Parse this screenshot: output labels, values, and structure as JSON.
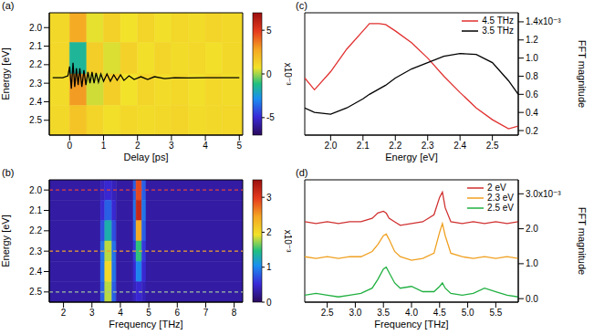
{
  "chart_data": [
    {
      "type": "heatmap",
      "title": "(a)",
      "x_label": "Delay [ps]",
      "y_label": "Energy [eV]",
      "xlim": [
        -0.6,
        5.1
      ],
      "xticks": [
        0,
        1,
        2,
        3,
        4,
        5
      ],
      "ylim": [
        1.92,
        2.58
      ],
      "yticks": [
        {
          "value": 2,
          "label": "2.0"
        },
        2.1,
        2.2,
        2.3,
        2.4,
        2.5
      ],
      "cells": {
        "x_edges": [
          -0.6,
          0,
          0.5,
          1,
          1.5,
          2,
          2.5,
          3,
          3.5,
          4,
          4.5,
          5.1
        ],
        "y_edges": [
          1.92,
          2.08,
          2.25,
          2.42,
          2.58
        ],
        "values": [
          [
            1.0,
            2.6,
            0.6,
            1.3,
            0.7,
            1.2,
            0.8,
            1.1,
            0.9,
            1.2,
            1.0
          ],
          [
            1.1,
            -1.5,
            1.4,
            0.5,
            1.3,
            0.8,
            1.2,
            0.9,
            1.1,
            0.8,
            1.0
          ],
          [
            0.9,
            3.0,
            0.4,
            1.4,
            0.7,
            1.2,
            0.9,
            1.1,
            0.8,
            1.1,
            0.9
          ],
          [
            1.0,
            1.8,
            1.2,
            0.8,
            1.1,
            0.9,
            1.0,
            1.2,
            0.9,
            1.0,
            1.1
          ]
        ]
      },
      "colorbar": {
        "range": [
          -7,
          7
        ],
        "ticks": [
          -5,
          0,
          5
        ],
        "label": "x10⁻³"
      },
      "x": [
        -0.5,
        -0.2,
        -0.05,
        0,
        0.05,
        0.1,
        0.15,
        0.2,
        0.25,
        0.3,
        0.36,
        0.42,
        0.48,
        0.54,
        0.6,
        0.66,
        0.72,
        0.78,
        0.85,
        0.92,
        1.0,
        1.1,
        1.2,
        1.3,
        1.4,
        1.5,
        1.6,
        1.75,
        1.9,
        2.1,
        2.3,
        2.5,
        2.8,
        3.1,
        3.5,
        4.0,
        4.5,
        5.0
      ],
      "series": [
        {
          "type": "line",
          "color": "#000000",
          "values": [
            2.27,
            2.27,
            2.26,
            2.21,
            2.33,
            2.19,
            2.32,
            2.22,
            2.31,
            2.22,
            2.32,
            2.23,
            2.31,
            2.24,
            2.3,
            2.24,
            2.3,
            2.245,
            2.295,
            2.25,
            2.29,
            2.25,
            2.29,
            2.255,
            2.285,
            2.255,
            2.285,
            2.26,
            2.28,
            2.265,
            2.28,
            2.265,
            2.275,
            2.27,
            2.272,
            2.27,
            2.27,
            2.27
          ]
        }
      ],
      "grid": false
    },
    {
      "type": "heatmap",
      "title": "(b)",
      "x_label": "Frequency [THz]",
      "y_label": "Energy [eV]",
      "xlim": [
        1.5,
        8.3
      ],
      "xticks": [
        2,
        3,
        4,
        5,
        6,
        7,
        8
      ],
      "ylim": [
        1.95,
        2.55
      ],
      "yticks": [
        {
          "value": 2,
          "label": "2.0"
        },
        2.1,
        2.2,
        2.3,
        2.4,
        2.5
      ],
      "cells": {
        "x_edges": [
          1.5,
          3.3,
          3.45,
          3.7,
          3.85,
          4.45,
          4.55,
          4.75,
          4.9,
          8.3
        ],
        "y_edges": [
          1.95,
          2.05,
          2.15,
          2.25,
          2.35,
          2.45,
          2.55
        ],
        "values": [
          [
            0.3,
            0.4,
            0.5,
            0.4,
            0.3,
            0.8,
            2.9,
            0.8,
            0.3
          ],
          [
            0.3,
            0.5,
            0.8,
            0.5,
            0.3,
            0.9,
            3.2,
            0.9,
            0.3
          ],
          [
            0.3,
            0.7,
            1.3,
            0.7,
            0.3,
            0.8,
            2.4,
            0.8,
            0.3
          ],
          [
            0.3,
            0.9,
            1.8,
            0.9,
            0.3,
            0.6,
            1.5,
            0.6,
            0.3
          ],
          [
            0.3,
            0.9,
            2.0,
            0.9,
            0.3,
            0.5,
            1.0,
            0.5,
            0.3
          ],
          [
            0.3,
            0.8,
            1.8,
            0.8,
            0.3,
            0.4,
            0.5,
            0.4,
            0.3
          ]
        ]
      },
      "colorbar": {
        "range": [
          0,
          3.5
        ],
        "ticks": [
          0,
          1,
          2,
          3
        ],
        "label": "x10⁻³"
      },
      "reference_lines": [
        {
          "y": 2,
          "color": "#e04040",
          "line_style": "dashed"
        },
        {
          "y": 2.3,
          "color": "#f0a030",
          "line_style": "dashed"
        },
        {
          "y": 2.5,
          "color": "#a0c0a0",
          "line_style": "dashed"
        }
      ],
      "grid": false
    },
    {
      "type": "line",
      "title": "(c)",
      "x_label": "Energy [eV]",
      "y_label": "FFT magnitude",
      "xlim": [
        1.92,
        2.58
      ],
      "xticks": [
        {
          "value": 2,
          "label": "2.0"
        },
        2.1,
        2.2,
        2.3,
        2.4,
        2.5
      ],
      "ylim": [
        0.15,
        1.5
      ],
      "yticks": [
        0.2,
        0.4,
        0.6,
        0.8,
        {
          "value": 1,
          "label": "1.0"
        },
        1.2,
        {
          "value": 1.4,
          "label": "1.4x10⁻³"
        }
      ],
      "x": [
        1.92,
        1.95,
        2.0,
        2.05,
        2.1,
        2.12,
        2.15,
        2.17,
        2.2,
        2.25,
        2.3,
        2.35,
        2.4,
        2.45,
        2.5,
        2.55,
        2.58
      ],
      "series": [
        {
          "name": "4.5 THz",
          "color": "#e0302f",
          "values": [
            0.78,
            0.65,
            0.85,
            1.1,
            1.3,
            1.38,
            1.38,
            1.37,
            1.3,
            1.17,
            1.0,
            0.8,
            0.62,
            0.45,
            0.32,
            0.22,
            0.25
          ]
        },
        {
          "name": "3.5 THz",
          "color": "#000000",
          "values": [
            0.45,
            0.4,
            0.38,
            0.45,
            0.55,
            0.6,
            0.66,
            0.7,
            0.78,
            0.88,
            0.95,
            1.02,
            1.05,
            1.04,
            0.95,
            0.75,
            0.6
          ]
        }
      ],
      "legend": "upper right",
      "grid": false
    },
    {
      "type": "line",
      "title": "(d)",
      "x_label": "Frequency [THz]",
      "y_label": "FFT magnitude",
      "xlim": [
        2.1,
        5.9
      ],
      "xticks": [
        2.5,
        {
          "value": 3,
          "label": "3.0"
        },
        3.5,
        {
          "value": 4,
          "label": "4.0"
        },
        4.5,
        {
          "value": 5,
          "label": "5.0"
        },
        5.5
      ],
      "ylim": [
        -0.1,
        3.4
      ],
      "yticks": [
        {
          "value": 0,
          "label": "0.0"
        },
        {
          "value": 1,
          "label": "1.0"
        },
        {
          "value": 2,
          "label": "2.0"
        },
        {
          "value": 3,
          "label": "3.0x10⁻³"
        }
      ],
      "x": [
        2.1,
        2.3,
        2.5,
        2.7,
        2.9,
        3.1,
        3.3,
        3.4,
        3.5,
        3.55,
        3.6,
        3.7,
        3.8,
        4.0,
        4.2,
        4.4,
        4.5,
        4.55,
        4.6,
        4.7,
        4.9,
        5.1,
        5.3,
        5.5,
        5.7,
        5.9
      ],
      "series": [
        {
          "name": "2 eV",
          "color": "#d03030",
          "values": [
            2.2,
            2.15,
            2.2,
            2.15,
            2.2,
            2.2,
            2.3,
            2.45,
            2.5,
            2.45,
            2.3,
            2.2,
            2.1,
            2.15,
            2.2,
            2.4,
            2.9,
            3.05,
            2.6,
            2.2,
            2.15,
            2.2,
            2.15,
            2.2,
            2.15,
            2.2
          ]
        },
        {
          "name": "2.3 eV",
          "color": "#f0a020",
          "values": [
            1.2,
            1.15,
            1.2,
            1.15,
            1.2,
            1.2,
            1.35,
            1.55,
            1.8,
            1.85,
            1.7,
            1.35,
            1.2,
            1.1,
            1.15,
            1.3,
            1.9,
            2.15,
            1.8,
            1.3,
            1.2,
            1.15,
            1.2,
            1.15,
            1.2,
            1.15
          ]
        },
        {
          "name": "2.5 eV",
          "color": "#20b040",
          "values": [
            0.1,
            0.15,
            0.1,
            0.05,
            0.1,
            0.15,
            0.3,
            0.55,
            0.85,
            0.9,
            0.75,
            0.45,
            0.3,
            0.35,
            0.2,
            0.2,
            0.35,
            0.45,
            0.3,
            0.15,
            0.1,
            0.15,
            0.3,
            0.2,
            0.1,
            0.05
          ]
        }
      ],
      "legend": "upper right",
      "grid": false
    }
  ]
}
